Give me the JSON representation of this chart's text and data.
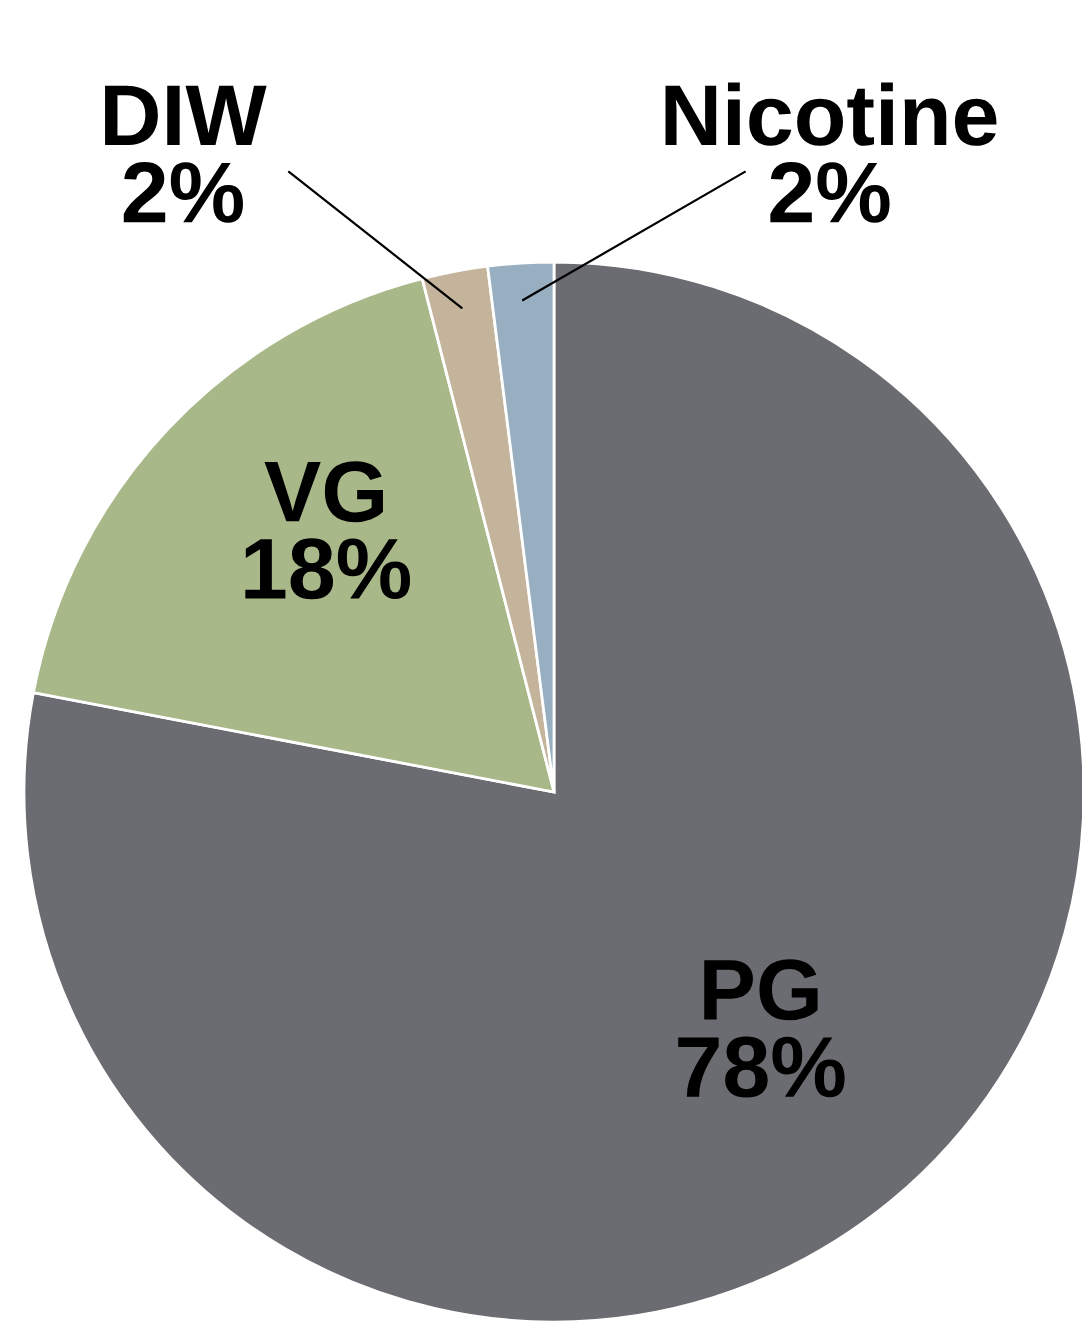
{
  "chart_data": {
    "type": "pie",
    "categories": [
      "PG",
      "VG",
      "DIW",
      "Nicotine"
    ],
    "values": [
      78,
      18,
      2,
      2
    ],
    "value_labels": [
      "78%",
      "18%",
      "2%",
      "2%"
    ],
    "colors": [
      "#6b6b72",
      "#a8b888",
      "#c4b49c",
      "#97afc0"
    ],
    "legend": false
  }
}
